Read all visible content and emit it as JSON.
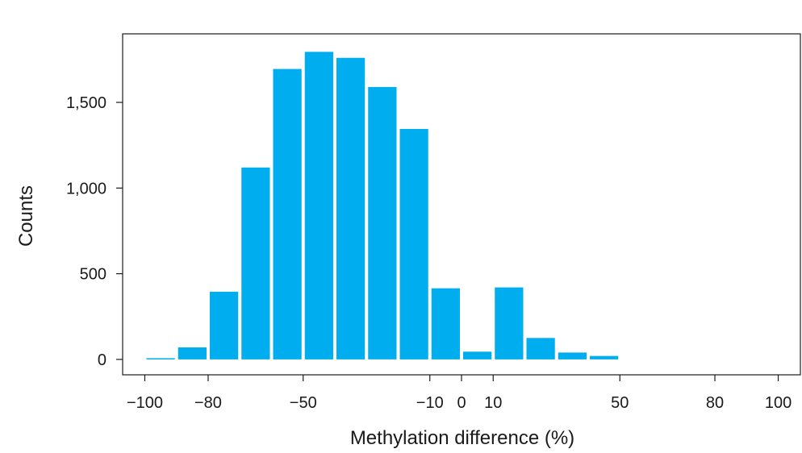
{
  "chart_data": {
    "type": "bar",
    "title": "",
    "xlabel": "Methylation difference (%)",
    "ylabel": "Counts",
    "bar_color": "#00AEEF",
    "x_ticks": [
      -100,
      -80,
      -50,
      -10,
      0,
      10,
      50,
      80,
      100
    ],
    "x_tick_labels": [
      "−100",
      "−80",
      "−50",
      "−10",
      "0",
      "10",
      "50",
      "80",
      "100"
    ],
    "y_ticks": [
      0,
      500,
      1000,
      1500
    ],
    "y_tick_labels": [
      "0",
      "500",
      "1,000",
      "1,500"
    ],
    "xlim": [
      -107,
      107
    ],
    "ylim": [
      -90,
      1900
    ],
    "bins": [
      {
        "x0": -100,
        "x1": -90,
        "value": 5
      },
      {
        "x0": -90,
        "x1": -80,
        "value": 70
      },
      {
        "x0": -80,
        "x1": -70,
        "value": 395
      },
      {
        "x0": -70,
        "x1": -60,
        "value": 1120
      },
      {
        "x0": -60,
        "x1": -50,
        "value": 1695
      },
      {
        "x0": -50,
        "x1": -40,
        "value": 1795
      },
      {
        "x0": -40,
        "x1": -30,
        "value": 1760
      },
      {
        "x0": -30,
        "x1": -20,
        "value": 1590
      },
      {
        "x0": -20,
        "x1": -10,
        "value": 1345
      },
      {
        "x0": -10,
        "x1": 0,
        "value": 415
      },
      {
        "x0": 0,
        "x1": 10,
        "value": 45
      },
      {
        "x0": 10,
        "x1": 20,
        "value": 420
      },
      {
        "x0": 20,
        "x1": 30,
        "value": 125
      },
      {
        "x0": 30,
        "x1": 40,
        "value": 40
      },
      {
        "x0": 40,
        "x1": 50,
        "value": 20
      }
    ]
  }
}
